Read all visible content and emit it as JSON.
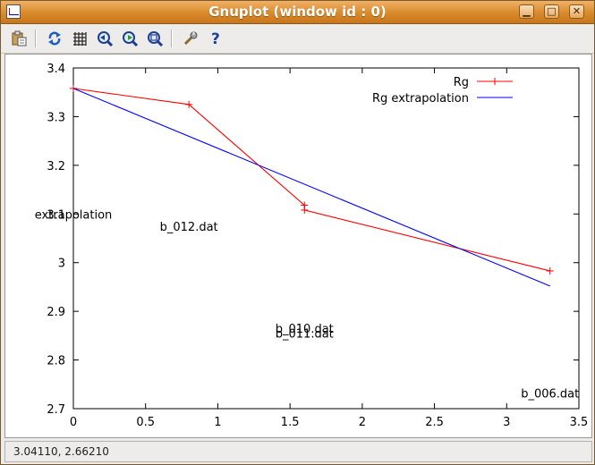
{
  "window": {
    "title": "Gnuplot (window id : 0)",
    "controls": [
      "minimize",
      "maximize",
      "close"
    ]
  },
  "toolbar": {
    "icons": [
      "clipboard-icon",
      "replot-icon",
      "grid-icon",
      "zoom-prev-icon",
      "zoom-next-icon",
      "zoom-autoscale-icon",
      "options-icon",
      "help-icon"
    ]
  },
  "status": {
    "coords": "3.04110,  2.66210"
  },
  "colors": {
    "series_rg": "#ff0000",
    "series_extrap": "#0000ff"
  },
  "chart_data": {
    "type": "line",
    "title": "",
    "xlabel": "",
    "ylabel": "",
    "xlim": [
      0,
      3.5
    ],
    "ylim": [
      2.7,
      3.4
    ],
    "xticks": [
      0,
      0.5,
      1,
      1.5,
      2,
      2.5,
      3,
      3.5
    ],
    "xtick_labels": [
      "0",
      "0.5",
      "1",
      "1.5",
      "2",
      "2.5",
      "3",
      "3.5"
    ],
    "yticks": [
      2.7,
      2.8,
      2.9,
      3.0,
      3.1,
      3.2,
      3.3,
      3.4
    ],
    "ytick_labels": [
      "2.7",
      "2.8",
      "2.9",
      "3",
      "3.1",
      "3.2",
      "3.3",
      "3.4"
    ],
    "grid": false,
    "legend_position": "top-right",
    "series": [
      {
        "name": "Rg",
        "color": "#ff0000",
        "marker": "+",
        "x": [
          0,
          0.8,
          1.6,
          1.6,
          3.3
        ],
        "y": [
          3.358,
          3.325,
          3.118,
          3.108,
          2.983
        ]
      },
      {
        "name": "Rg extrapolation",
        "color": "#0000ff",
        "marker": "none",
        "x": [
          0,
          3.3
        ],
        "y": [
          3.358,
          2.952
        ]
      }
    ],
    "annotations": [
      {
        "text": "extrapolation",
        "x": 0,
        "y": 3.1
      },
      {
        "text": "b_012.dat",
        "x": 0.8,
        "y": 3.075
      },
      {
        "text": "b_010.dat",
        "x": 1.6,
        "y": 2.865
      },
      {
        "text": "b_011.dat",
        "x": 1.6,
        "y": 2.855
      },
      {
        "text": "b_006.dat",
        "x": 3.3,
        "y": 2.732
      }
    ]
  }
}
